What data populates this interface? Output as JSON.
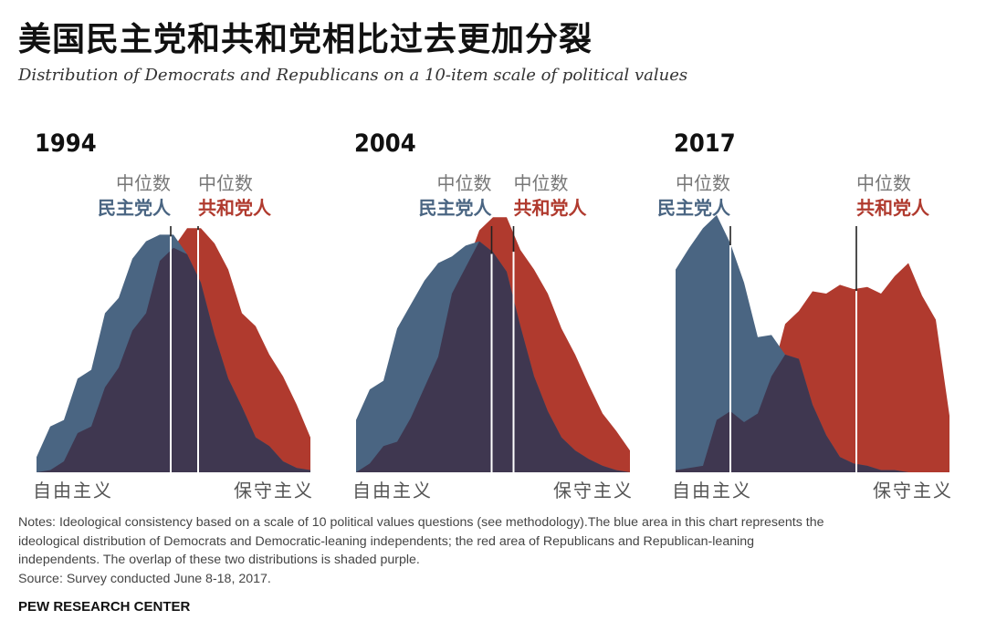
{
  "title": "美国民主党和共和党相比过去更加分裂",
  "subtitle": "Distribution of Democrats and Republicans on a 10-item scale of political values",
  "colors": {
    "democrat": "#4a6582",
    "republican": "#b03a2e",
    "overlap": "#3f3750",
    "median_line": "#ffffff",
    "median_label_top": "#777777",
    "axis_label": "#555555"
  },
  "chart_data": [
    {
      "type": "area",
      "title": "1994",
      "x_axis_left_label": "自由主义",
      "x_axis_right_label": "保守主义",
      "x": [
        -10,
        -9,
        -8,
        -7,
        -6,
        -5,
        -4,
        -3,
        -2,
        -1,
        0,
        1,
        2,
        3,
        4,
        5,
        6,
        7,
        8,
        9,
        10
      ],
      "xlim": [
        -10,
        10
      ],
      "ylim": [
        0,
        11
      ],
      "series": [
        {
          "party": "democrat",
          "values": [
            0.7,
            2.1,
            2.4,
            4.3,
            4.7,
            7.3,
            8.0,
            9.8,
            10.6,
            10.9,
            10.9,
            10.0,
            8.7,
            6.3,
            4.3,
            3.0,
            1.6,
            1.2,
            0.5,
            0.2,
            0.1
          ]
        },
        {
          "party": "republican",
          "values": [
            0.0,
            0.1,
            0.5,
            1.8,
            2.1,
            3.9,
            4.8,
            6.5,
            7.3,
            9.7,
            10.3,
            11.2,
            11.2,
            10.5,
            9.3,
            7.3,
            6.7,
            5.4,
            4.4,
            3.1,
            1.6
          ]
        }
      ],
      "median": {
        "democrat_x": -0.2,
        "republican_x": 1.8,
        "label_top": "中位数",
        "democrat_label": "民主党人",
        "republican_label": "共和党人"
      }
    },
    {
      "type": "area",
      "title": "2004",
      "x_axis_left_label": "自由主义",
      "x_axis_right_label": "保守主义",
      "x": [
        -10,
        -9,
        -8,
        -7,
        -6,
        -5,
        -4,
        -3,
        -2,
        -1,
        0,
        1,
        2,
        3,
        4,
        5,
        6,
        7,
        8,
        9,
        10
      ],
      "xlim": [
        -10,
        10
      ],
      "ylim": [
        0,
        11
      ],
      "series": [
        {
          "party": "democrat",
          "values": [
            2.4,
            3.8,
            4.2,
            6.6,
            7.7,
            8.8,
            9.6,
            9.9,
            10.4,
            10.6,
            10.1,
            9.2,
            6.7,
            4.4,
            2.8,
            1.6,
            1.0,
            0.6,
            0.3,
            0.1,
            0.0
          ]
        },
        {
          "party": "republican",
          "values": [
            0.0,
            0.4,
            1.2,
            1.4,
            2.5,
            3.9,
            5.3,
            8.2,
            9.4,
            11.1,
            11.7,
            11.7,
            10.2,
            9.3,
            8.2,
            6.6,
            5.4,
            4.0,
            2.7,
            1.9,
            1.0
          ]
        }
      ],
      "median": {
        "democrat_x": -0.1,
        "republican_x": 1.5,
        "label_top": "中位数",
        "democrat_label": "民主党人",
        "republican_label": "共和党人"
      }
    },
    {
      "type": "area",
      "title": "2017",
      "x_axis_left_label": "自由主义",
      "x_axis_right_label": "保守主义",
      "x": [
        -10,
        -9,
        -8,
        -7,
        -6,
        -5,
        -4,
        -3,
        -2,
        -1,
        0,
        1,
        2,
        3,
        4,
        5,
        6,
        7,
        8,
        9,
        10
      ],
      "xlim": [
        -10,
        10
      ],
      "ylim": [
        0,
        11
      ],
      "series": [
        {
          "party": "democrat",
          "values": [
            9.3,
            10.3,
            11.2,
            11.8,
            10.5,
            8.7,
            6.2,
            6.3,
            5.4,
            5.2,
            3.1,
            1.7,
            0.7,
            0.4,
            0.3,
            0.1,
            0.1,
            0.0,
            0.0,
            0.0,
            0.0
          ]
        },
        {
          "party": "republican",
          "values": [
            0.1,
            0.2,
            0.3,
            2.4,
            2.8,
            2.3,
            2.7,
            4.4,
            5.1,
            5.3,
            4.6,
            2.6,
            0.8,
            0.7,
            0.4,
            0.3,
            0.1,
            0.1,
            0.1,
            0.1,
            0.1
          ]
        }
      ],
      "republican_full": [
        0.1,
        0.2,
        0.3,
        2.4,
        2.8,
        2.3,
        2.7,
        4.4,
        6.8,
        7.4,
        8.3,
        8.2,
        8.6,
        8.4,
        8.5,
        8.2,
        9.0,
        9.6,
        8.1,
        7.0,
        2.6
      ],
      "median": {
        "democrat_x": -6.0,
        "republican_x": 3.2,
        "label_top": "中位数",
        "democrat_label": "民主党人",
        "republican_label": "共和党人"
      }
    }
  ],
  "notes": {
    "line1": "Notes: Ideological consistency based on a scale of 10 political values questions (see methodology).The blue area in this chart represents the",
    "line2": "ideological distribution of Democrats and Democratic-leaning independents; the red area of Republicans and Republican-leaning",
    "line3": "independents. The overlap of these two distributions is shaded purple.",
    "source": "Source: Survey conducted June 8-18, 2017."
  },
  "brand": "PEW RESEARCH CENTER"
}
